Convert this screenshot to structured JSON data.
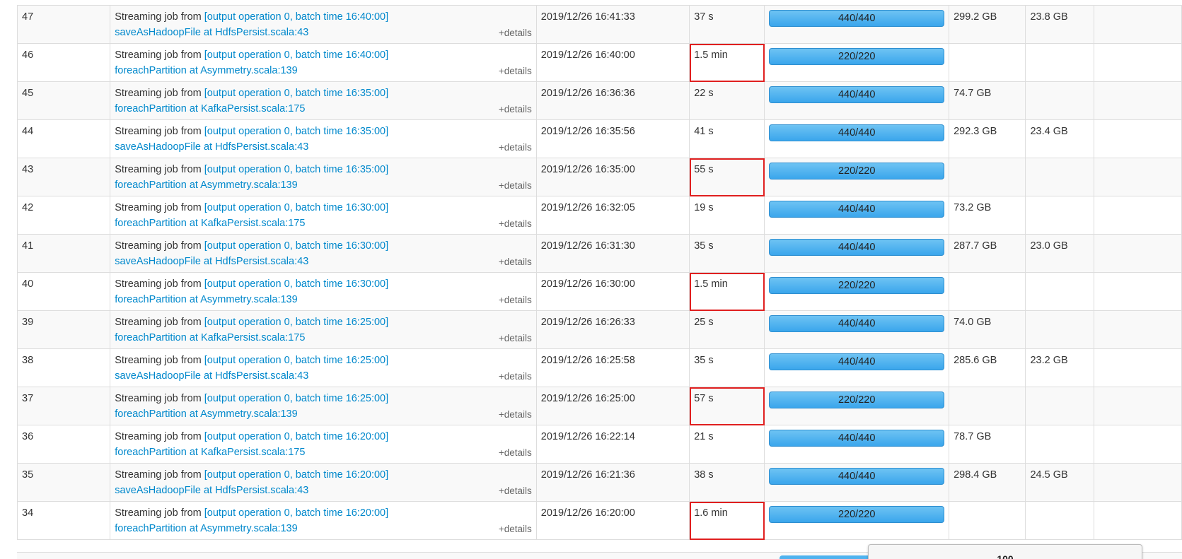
{
  "table": {
    "rows": [
      {
        "id": "47",
        "desc_prefix": "Streaming job from ",
        "desc_link": "[output operation 0, batch time 16:40:00]",
        "callsite": "saveAsHadoopFile at HdfsPersist.scala:43",
        "details": "+details",
        "submitted": "2019/12/26 16:41:33",
        "duration": "37 s",
        "duration_flagged": false,
        "tasks": "440/440",
        "input": "299.2 GB",
        "output": "23.8 GB",
        "progress": 1.0
      },
      {
        "id": "46",
        "desc_prefix": "Streaming job from ",
        "desc_link": "[output operation 0, batch time 16:40:00]",
        "callsite": "foreachPartition at Asymmetry.scala:139",
        "details": "+details",
        "submitted": "2019/12/26 16:40:00",
        "duration": "1.5 min",
        "duration_flagged": true,
        "tasks": "220/220",
        "input": "",
        "output": "",
        "progress": 1.0
      },
      {
        "id": "45",
        "desc_prefix": "Streaming job from ",
        "desc_link": "[output operation 0, batch time 16:35:00]",
        "callsite": "foreachPartition at KafkaPersist.scala:175",
        "details": "+details",
        "submitted": "2019/12/26 16:36:36",
        "duration": "22 s",
        "duration_flagged": false,
        "tasks": "440/440",
        "input": "74.7 GB",
        "output": "",
        "progress": 1.0
      },
      {
        "id": "44",
        "desc_prefix": "Streaming job from ",
        "desc_link": "[output operation 0, batch time 16:35:00]",
        "callsite": "saveAsHadoopFile at HdfsPersist.scala:43",
        "details": "+details",
        "submitted": "2019/12/26 16:35:56",
        "duration": "41 s",
        "duration_flagged": false,
        "tasks": "440/440",
        "input": "292.3 GB",
        "output": "23.4 GB",
        "progress": 1.0
      },
      {
        "id": "43",
        "desc_prefix": "Streaming job from ",
        "desc_link": "[output operation 0, batch time 16:35:00]",
        "callsite": "foreachPartition at Asymmetry.scala:139",
        "details": "+details",
        "submitted": "2019/12/26 16:35:00",
        "duration": "55 s",
        "duration_flagged": true,
        "tasks": "220/220",
        "input": "",
        "output": "",
        "progress": 1.0
      },
      {
        "id": "42",
        "desc_prefix": "Streaming job from ",
        "desc_link": "[output operation 0, batch time 16:30:00]",
        "callsite": "foreachPartition at KafkaPersist.scala:175",
        "details": "+details",
        "submitted": "2019/12/26 16:32:05",
        "duration": "19 s",
        "duration_flagged": false,
        "tasks": "440/440",
        "input": "73.2 GB",
        "output": "",
        "progress": 1.0
      },
      {
        "id": "41",
        "desc_prefix": "Streaming job from ",
        "desc_link": "[output operation 0, batch time 16:30:00]",
        "callsite": "saveAsHadoopFile at HdfsPersist.scala:43",
        "details": "+details",
        "submitted": "2019/12/26 16:31:30",
        "duration": "35 s",
        "duration_flagged": false,
        "tasks": "440/440",
        "input": "287.7 GB",
        "output": "23.0 GB",
        "progress": 1.0
      },
      {
        "id": "40",
        "desc_prefix": "Streaming job from ",
        "desc_link": "[output operation 0, batch time 16:30:00]",
        "callsite": "foreachPartition at Asymmetry.scala:139",
        "details": "+details",
        "submitted": "2019/12/26 16:30:00",
        "duration": "1.5 min",
        "duration_flagged": true,
        "tasks": "220/220",
        "input": "",
        "output": "",
        "progress": 1.0
      },
      {
        "id": "39",
        "desc_prefix": "Streaming job from ",
        "desc_link": "[output operation 0, batch time 16:25:00]",
        "callsite": "foreachPartition at KafkaPersist.scala:175",
        "details": "+details",
        "submitted": "2019/12/26 16:26:33",
        "duration": "25 s",
        "duration_flagged": false,
        "tasks": "440/440",
        "input": "74.0 GB",
        "output": "",
        "progress": 1.0
      },
      {
        "id": "38",
        "desc_prefix": "Streaming job from ",
        "desc_link": "[output operation 0, batch time 16:25:00]",
        "callsite": "saveAsHadoopFile at HdfsPersist.scala:43",
        "details": "+details",
        "submitted": "2019/12/26 16:25:58",
        "duration": "35 s",
        "duration_flagged": false,
        "tasks": "440/440",
        "input": "285.6 GB",
        "output": "23.2 GB",
        "progress": 1.0
      },
      {
        "id": "37",
        "desc_prefix": "Streaming job from ",
        "desc_link": "[output operation 0, batch time 16:25:00]",
        "callsite": "foreachPartition at Asymmetry.scala:139",
        "details": "+details",
        "submitted": "2019/12/26 16:25:00",
        "duration": "57 s",
        "duration_flagged": true,
        "tasks": "220/220",
        "input": "",
        "output": "",
        "progress": 1.0
      },
      {
        "id": "36",
        "desc_prefix": "Streaming job from ",
        "desc_link": "[output operation 0, batch time 16:20:00]",
        "callsite": "foreachPartition at KafkaPersist.scala:175",
        "details": "+details",
        "submitted": "2019/12/26 16:22:14",
        "duration": "21 s",
        "duration_flagged": false,
        "tasks": "440/440",
        "input": "78.7 GB",
        "output": "",
        "progress": 1.0
      },
      {
        "id": "35",
        "desc_prefix": "Streaming job from ",
        "desc_link": "[output operation 0, batch time 16:20:00]",
        "callsite": "saveAsHadoopFile at HdfsPersist.scala:43",
        "details": "+details",
        "submitted": "2019/12/26 16:21:36",
        "duration": "38 s",
        "duration_flagged": false,
        "tasks": "440/440",
        "input": "298.4 GB",
        "output": "24.5 GB",
        "progress": 1.0
      },
      {
        "id": "34",
        "desc_prefix": "Streaming job from ",
        "desc_link": "[output operation 0, batch time 16:20:00]",
        "callsite": "foreachPartition at Asymmetry.scala:139",
        "details": "+details",
        "submitted": "2019/12/26 16:20:00",
        "duration": "1.6 min",
        "duration_flagged": true,
        "tasks": "220/220",
        "input": "",
        "output": "",
        "progress": 1.0
      }
    ]
  },
  "tooltip": {
    "text": "100"
  },
  "colors": {
    "link": "#0088cc",
    "bar": "#3aa6ec",
    "flag_border": "#e02020"
  }
}
